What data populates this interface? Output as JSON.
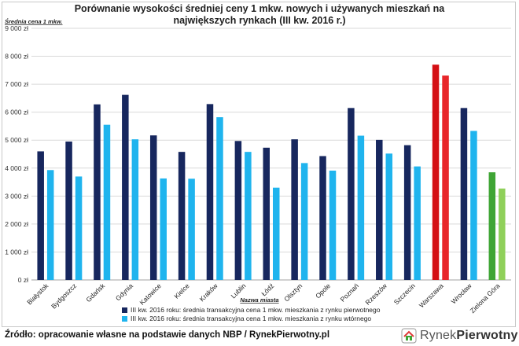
{
  "chart_data": {
    "type": "bar",
    "title": "Porównanie wysokości średniej ceny 1 mkw. nowych i używanych mieszkań na największych rynkach (III kw. 2016 r.)",
    "ylabel": "Średnia cena 1 mkw.",
    "xlabel": "Nazwa miasta",
    "ylim": [
      0,
      9000
    ],
    "yticks": [
      "0 zł",
      "1 000 zł",
      "2 000 zł",
      "3 000 zł",
      "4 000 zł",
      "5 000 zł",
      "6 000 zł",
      "7 000 zł",
      "8 000 zł",
      "9 000 zł"
    ],
    "grid": true,
    "legend_position": "bottom",
    "categories": [
      "Białystok",
      "Bydgoszcz",
      "Gdańsk",
      "Gdynia",
      "Katowice",
      "Kielce",
      "Kraków",
      "Lublin",
      "Łódź",
      "Olsztyn",
      "Opole",
      "Poznań",
      "Rzeszów",
      "Szczecin",
      "Warszawa",
      "Wrocław",
      "Zielona Góra"
    ],
    "series": [
      {
        "name": "III kw. 2016 roku: średnia transakcyjna cena 1 mkw. mieszkania z rynku pierwotnego",
        "color": "#17275e",
        "values": [
          4600,
          4950,
          6280,
          6620,
          5170,
          4580,
          6290,
          4970,
          4730,
          5030,
          4430,
          6150,
          5010,
          4820,
          7700,
          6150,
          3850
        ]
      },
      {
        "name": "III kw. 2016 roku: średnia transakcyjna cena 1 mkw. mieszkania z rynku wtórnego",
        "color": "#1fb4ee",
        "values": [
          3930,
          3700,
          5550,
          5030,
          3630,
          3620,
          5820,
          4580,
          3300,
          4180,
          3910,
          5160,
          4520,
          4060,
          7310,
          5330,
          3270
        ]
      }
    ],
    "highlight_colors": {
      "Warszawa": [
        "#d40f14",
        "#e8262a"
      ],
      "Zielona Góra": [
        "#3fa535",
        "#8fd05a"
      ]
    }
  },
  "footer": {
    "source": "Źródło: opracowanie własne na podstawie danych NBP / RynekPierwotny.pl"
  },
  "logo": {
    "part1": "Rynek",
    "part2": "Pierwotny",
    "icon": "house-icon"
  }
}
